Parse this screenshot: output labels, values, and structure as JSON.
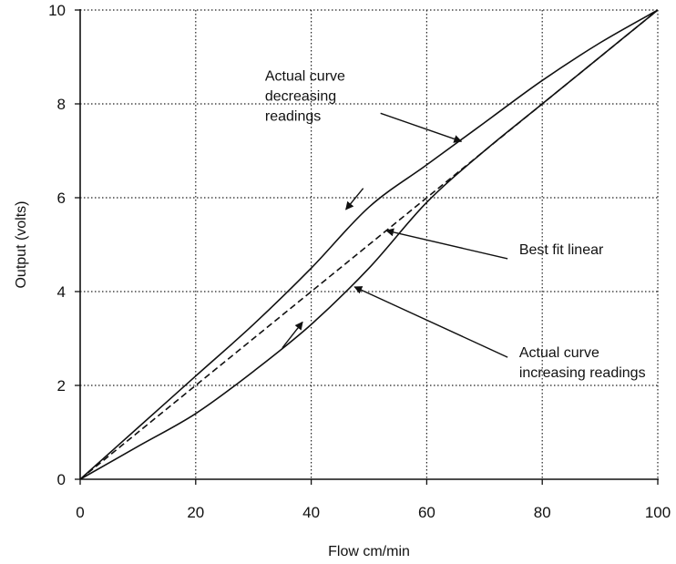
{
  "chart_data": {
    "type": "line",
    "title": "",
    "xlabel": "Flow cm/min",
    "ylabel": "Output (volts)",
    "xlim": [
      0,
      100
    ],
    "ylim": [
      0,
      10
    ],
    "xticks": [
      0,
      20,
      40,
      60,
      80,
      100
    ],
    "yticks": [
      0,
      2,
      4,
      6,
      8,
      10
    ],
    "xtick_labels": [
      "0",
      "20",
      "40",
      "60",
      "80",
      "100"
    ],
    "ytick_labels": [
      "0",
      "2",
      "4",
      "6",
      "8",
      "10"
    ],
    "grid": true,
    "grid_style": "dotted",
    "legend": "none",
    "series": [
      {
        "name": "Actual curve decreasing readings",
        "style": "solid",
        "color": "#111111",
        "x": [
          0,
          10,
          20,
          30,
          40,
          50,
          60,
          70,
          80,
          90,
          100
        ],
        "y": [
          0,
          1.1,
          2.2,
          3.3,
          4.5,
          5.8,
          6.7,
          7.6,
          8.5,
          9.3,
          10
        ]
      },
      {
        "name": "Best fit linear",
        "style": "dashed",
        "color": "#111111",
        "x": [
          0,
          100
        ],
        "y": [
          0,
          10
        ]
      },
      {
        "name": "Actual curve increasing readings",
        "style": "solid",
        "color": "#111111",
        "x": [
          0,
          10,
          20,
          30,
          40,
          50,
          60,
          70,
          80,
          90,
          100
        ],
        "y": [
          0,
          0.7,
          1.4,
          2.3,
          3.3,
          4.5,
          5.9,
          7.0,
          8.0,
          9.0,
          10
        ]
      }
    ],
    "annotations": [
      {
        "id": "decreasing",
        "lines": [
          "Actual curve",
          "decreasing",
          "readings"
        ],
        "text_at": [
          32,
          8.5
        ],
        "arrow_from": [
          52,
          7.8
        ],
        "arrow_to": [
          66,
          7.2
        ],
        "curve_arrow_from": [
          49,
          6.2
        ],
        "curve_arrow_to": [
          46,
          5.75
        ]
      },
      {
        "id": "best-fit",
        "lines": [
          "Best fit linear"
        ],
        "text_at": [
          76,
          4.8
        ],
        "arrow_from": [
          74,
          4.7
        ],
        "arrow_to": [
          53,
          5.3
        ]
      },
      {
        "id": "increasing",
        "lines": [
          "Actual curve",
          "increasing readings"
        ],
        "text_at": [
          76,
          2.6
        ],
        "arrow_from": [
          74,
          2.6
        ],
        "arrow_to": [
          47.5,
          4.1
        ],
        "curve_arrow_from": [
          35,
          2.8
        ],
        "curve_arrow_to": [
          38.5,
          3.35
        ]
      }
    ]
  }
}
